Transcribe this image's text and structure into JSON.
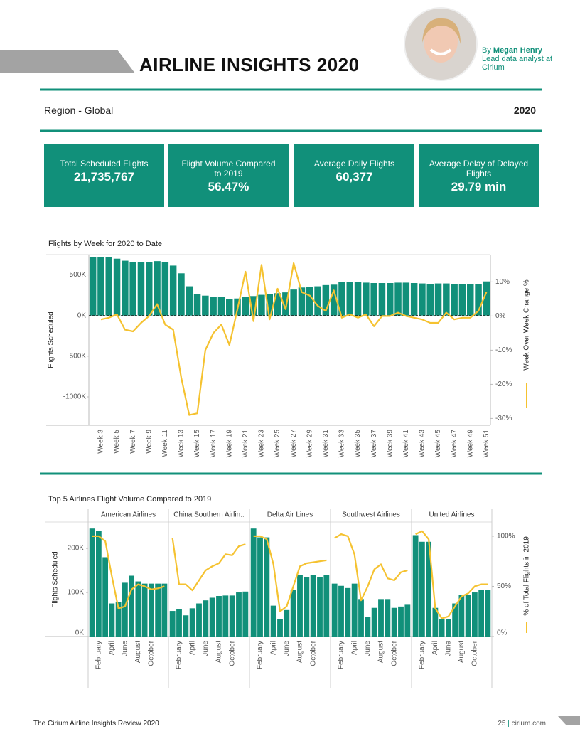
{
  "header": {
    "title": "AIRLINE INSIGHTS 2020",
    "by": "By",
    "author": "Megan Henry",
    "role": "Lead data analyst at Cirium"
  },
  "region": {
    "label": "Region - Global",
    "year": "2020"
  },
  "kpis": [
    {
      "label": "Total Scheduled Flights",
      "value": "21,735,767"
    },
    {
      "label": "Flight Volume Compared to 2019",
      "value": "56.47%"
    },
    {
      "label": "Average Daily Flights",
      "value": "60,377"
    },
    {
      "label": "Average Delay of Delayed Flights",
      "value": "29.79 min"
    }
  ],
  "chart_data": [
    {
      "type": "bar_line",
      "title": "Flights by Week for 2020 to Date",
      "y_label": "Flights Scheduled",
      "y2_label": "Week Over Week Change %",
      "categories": [
        null,
        "Week 3",
        null,
        "Week 5",
        null,
        "Week 7",
        null,
        "Week 9",
        null,
        "Week 11",
        null,
        "Week 13",
        null,
        "Week 15",
        null,
        "Week 17",
        null,
        "Week 19",
        null,
        "Week 21",
        null,
        "Week 23",
        null,
        "Week 25",
        null,
        "Week 27",
        null,
        "Week 29",
        null,
        "Week 31",
        null,
        "Week 33",
        null,
        "Week 35",
        null,
        "Week 37",
        null,
        "Week 39",
        null,
        "Week 41",
        null,
        "Week 43",
        null,
        "Week 45",
        null,
        "Week 47",
        null,
        "Week 49",
        null,
        "Week 51"
      ],
      "series": [
        {
          "color": "#11907a",
          "values": [
            720000,
            720000,
            715000,
            700000,
            675000,
            660000,
            660000,
            660000,
            670000,
            660000,
            615000,
            520000,
            360000,
            260000,
            245000,
            225000,
            225000,
            205000,
            210000,
            230000,
            240000,
            255000,
            260000,
            275000,
            285000,
            320000,
            345000,
            350000,
            360000,
            375000,
            380000,
            410000,
            410000,
            410000,
            405000,
            400000,
            400000,
            400000,
            405000,
            405000,
            400000,
            395000,
            390000,
            395000,
            395000,
            390000,
            390000,
            390000,
            385000,
            420000
          ]
        },
        {
          "color": "#f5c230",
          "axis": "y2",
          "values": [
            null,
            -1,
            -0.5,
            0.5,
            -4,
            -4.5,
            -2,
            0,
            3.5,
            -2.5,
            -4,
            -18,
            -29,
            -28.5,
            -10,
            -5,
            -2.5,
            -8.5,
            2,
            13,
            -1.5,
            15,
            -1,
            8,
            2,
            15.5,
            7,
            6,
            3,
            1.5,
            7.5,
            -0.5,
            0.5,
            -0.5,
            0.5,
            -3,
            0,
            0,
            1,
            0,
            -0.5,
            -1,
            -2,
            -2,
            1,
            -1,
            -0.5,
            -0.5,
            1.5,
            7
          ]
        }
      ],
      "ylim": [
        -1350000,
        750000
      ],
      "yticks": [
        {
          "value": -1000000,
          "label": "-1000K"
        },
        {
          "value": -500000,
          "label": "-500K"
        },
        {
          "value": 0,
          "label": "0K"
        },
        {
          "value": 500000,
          "label": "500K"
        }
      ],
      "y2lim": [
        -32,
        18
      ],
      "y2ticks": [
        {
          "value": -30,
          "label": "-30%"
        },
        {
          "value": -20,
          "label": "-20%"
        },
        {
          "value": -10,
          "label": "-10%"
        },
        {
          "value": 0,
          "label": "0%"
        },
        {
          "value": 10,
          "label": "10%"
        }
      ]
    },
    {
      "type": "panel_bar_line",
      "title": "Top 5 Airlines Flight Volume Compared to 2019",
      "y_label": "Flights Scheduled",
      "y2_label": "% of Total Flights in 2019",
      "bar_color": "#11907a",
      "line_color": "#f5c230",
      "categories": [
        null,
        "February",
        null,
        "April",
        null,
        "June",
        null,
        "August",
        null,
        "October",
        null,
        null
      ],
      "panels": [
        {
          "name": "American Airlines",
          "values": [
            245000,
            240000,
            180000,
            75000,
            78000,
            122000,
            138000,
            125000,
            120000,
            120000,
            120000,
            120000
          ],
          "pct_values": [
            100,
            100,
            95,
            60,
            28,
            30,
            47,
            52,
            50,
            47,
            48,
            50
          ]
        },
        {
          "name": "China Southern Airlin..",
          "values": [
            58000,
            62000,
            48000,
            64000,
            75000,
            82000,
            88000,
            92000,
            93000,
            93000,
            100000,
            102000
          ],
          "pct_values": [
            98,
            52,
            52,
            46,
            56,
            66,
            70,
            73,
            82,
            81,
            90,
            92
          ]
        },
        {
          "name": "Delta Air Lines",
          "values": [
            245000,
            225000,
            225000,
            70000,
            40000,
            60000,
            105000,
            140000,
            135000,
            140000,
            135000,
            140000
          ],
          "pct_values": [
            100,
            100,
            97,
            72,
            25,
            30,
            50,
            70,
            73,
            74,
            75,
            76
          ]
        },
        {
          "name": "Southwest Airlines",
          "values": [
            120000,
            115000,
            110000,
            120000,
            85000,
            45000,
            65000,
            85000,
            85000,
            65000,
            68000,
            72000
          ],
          "pct_values": [
            98,
            102,
            100,
            82,
            36,
            50,
            67,
            72,
            58,
            56,
            64,
            66
          ]
        },
        {
          "name": "United Airlines",
          "values": [
            230000,
            215000,
            215000,
            65000,
            40000,
            40000,
            75000,
            95000,
            95000,
            100000,
            105000,
            105000
          ],
          "pct_values": [
            102,
            105,
            97,
            28,
            18,
            20,
            30,
            40,
            43,
            50,
            52,
            52
          ]
        }
      ],
      "ylim": [
        0,
        255000
      ],
      "yticks": [
        {
          "value": 0,
          "label": "0K"
        },
        {
          "value": 100000,
          "label": "100K"
        },
        {
          "value": 200000,
          "label": "200K"
        }
      ],
      "y2lim": [
        0,
        112
      ],
      "y2ticks": [
        {
          "value": 0,
          "label": "0%"
        },
        {
          "value": 50,
          "label": "50%"
        },
        {
          "value": 100,
          "label": "100%"
        }
      ]
    }
  ],
  "footer": {
    "left": "The Cirium Airline Insights Review 2020",
    "page": "25",
    "site": "cirium.com"
  }
}
